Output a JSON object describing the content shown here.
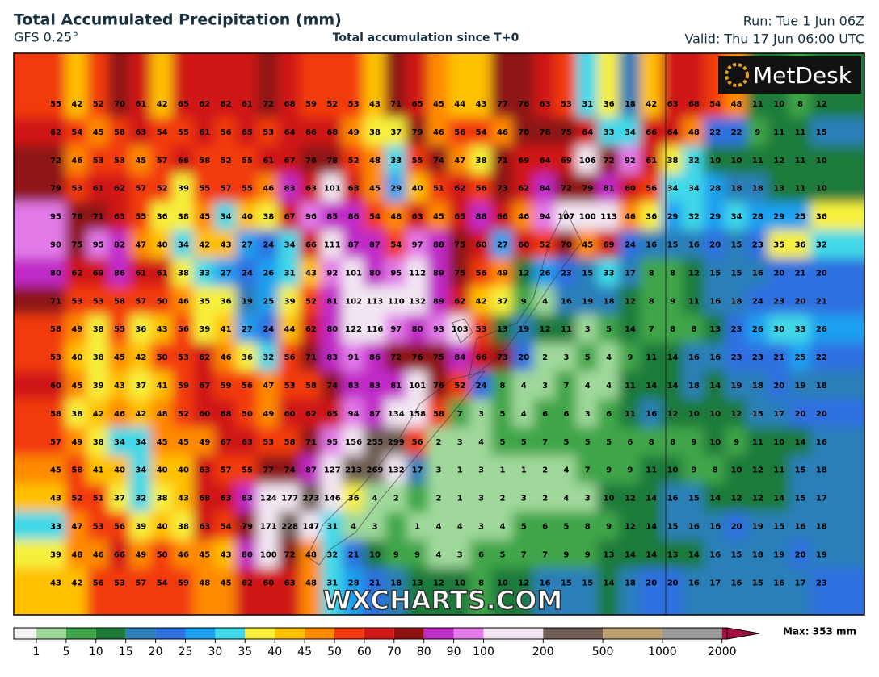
{
  "header": {
    "title": "Total Accumulated Precipitation (mm)",
    "model": "GFS 0.25°",
    "subtitle": "Total accumulation since T+0",
    "run": "Run: Tue 1 Jun 06Z",
    "valid": "Valid: Thu 17 Jun 06:00 UTC"
  },
  "logo": "MetDesk",
  "watermark": "WXCHARTS.COM",
  "max_label": "Max: 353 mm",
  "map": {
    "grid": [
      [
        55,
        42,
        52,
        70,
        61,
        42,
        65,
        62,
        62,
        61,
        72,
        68,
        59,
        52,
        53,
        43,
        71,
        65,
        45,
        44,
        43,
        77,
        76,
        63,
        53,
        31,
        36,
        18,
        42,
        63,
        68,
        54,
        48,
        11,
        10,
        8,
        12
      ],
      [
        62,
        54,
        45,
        58,
        63,
        54,
        55,
        61,
        56,
        65,
        53,
        64,
        66,
        68,
        49,
        38,
        37,
        79,
        46,
        56,
        54,
        46,
        70,
        78,
        75,
        64,
        33,
        34,
        66,
        64,
        48,
        22,
        22,
        9,
        11,
        11,
        15
      ],
      [
        72,
        46,
        53,
        53,
        45,
        57,
        66,
        58,
        52,
        55,
        61,
        67,
        76,
        78,
        52,
        48,
        33,
        55,
        74,
        47,
        38,
        71,
        69,
        64,
        69,
        106,
        72,
        92,
        61,
        38,
        32,
        10,
        10,
        11,
        12,
        11,
        10
      ],
      [
        79,
        53,
        61,
        62,
        57,
        52,
        39,
        55,
        57,
        55,
        46,
        83,
        63,
        101,
        68,
        45,
        29,
        40,
        51,
        62,
        56,
        73,
        62,
        84,
        72,
        79,
        81,
        60,
        56,
        34,
        34,
        28,
        18,
        18,
        13,
        11,
        10
      ],
      [
        95,
        76,
        71,
        63,
        55,
        36,
        38,
        45,
        34,
        40,
        38,
        67,
        96,
        85,
        86,
        54,
        48,
        63,
        45,
        65,
        88,
        66,
        46,
        94,
        107,
        100,
        113,
        46,
        36,
        29,
        32,
        29,
        34,
        28,
        29,
        25,
        36
      ],
      [
        90,
        75,
        95,
        82,
        47,
        40,
        34,
        42,
        43,
        27,
        24,
        34,
        66,
        111,
        87,
        87,
        54,
        97,
        88,
        75,
        60,
        27,
        60,
        52,
        70,
        45,
        69,
        24,
        16,
        15,
        16,
        20,
        15,
        23,
        35,
        36,
        32
      ],
      [
        80,
        62,
        69,
        86,
        61,
        61,
        38,
        33,
        27,
        24,
        26,
        31,
        43,
        92,
        101,
        80,
        95,
        112,
        89,
        75,
        56,
        49,
        12,
        26,
        23,
        15,
        33,
        17,
        8,
        8,
        12,
        15,
        15,
        16,
        20,
        21,
        20
      ],
      [
        71,
        53,
        53,
        58,
        57,
        50,
        46,
        35,
        36,
        19,
        25,
        39,
        52,
        81,
        102,
        113,
        110,
        132,
        89,
        62,
        42,
        37,
        9,
        4,
        16,
        19,
        18,
        12,
        8,
        9,
        11,
        16,
        18,
        24,
        23,
        20,
        21
      ],
      [
        58,
        49,
        38,
        55,
        36,
        43,
        56,
        39,
        41,
        27,
        24,
        44,
        62,
        80,
        122,
        116,
        97,
        80,
        93,
        103,
        53,
        13,
        19,
        12,
        11,
        3,
        5,
        14,
        7,
        8,
        8,
        13,
        23,
        26,
        30,
        33,
        26
      ],
      [
        53,
        40,
        38,
        45,
        42,
        50,
        53,
        62,
        46,
        36,
        32,
        56,
        71,
        83,
        91,
        86,
        72,
        76,
        75,
        84,
        66,
        73,
        20,
        2,
        3,
        5,
        4,
        9,
        11,
        14,
        16,
        16,
        23,
        23,
        21,
        25,
        22
      ],
      [
        60,
        45,
        39,
        43,
        37,
        41,
        59,
        67,
        59,
        56,
        47,
        53,
        58,
        74,
        83,
        83,
        81,
        101,
        76,
        52,
        24,
        8,
        4,
        3,
        7,
        4,
        4,
        11,
        14,
        14,
        18,
        14,
        19,
        18,
        20,
        19,
        18
      ],
      [
        58,
        38,
        42,
        46,
        42,
        48,
        52,
        60,
        68,
        50,
        49,
        60,
        62,
        65,
        94,
        87,
        134,
        158,
        58,
        7,
        3,
        5,
        4,
        6,
        6,
        3,
        6,
        11,
        16,
        12,
        10,
        10,
        12,
        15,
        17,
        20,
        20
      ],
      [
        57,
        49,
        38,
        34,
        34,
        45,
        45,
        49,
        67,
        63,
        53,
        58,
        71,
        95,
        156,
        255,
        299,
        56,
        2,
        3,
        4,
        5,
        5,
        7,
        5,
        5,
        5,
        6,
        8,
        8,
        9,
        10,
        9,
        11,
        10,
        14,
        16
      ],
      [
        45,
        58,
        41,
        40,
        34,
        40,
        40,
        63,
        57,
        55,
        77,
        74,
        87,
        127,
        213,
        269,
        132,
        17,
        3,
        1,
        3,
        1,
        1,
        2,
        4,
        7,
        9,
        9,
        11,
        10,
        9,
        8,
        10,
        12,
        11,
        15,
        18
      ],
      [
        43,
        52,
        51,
        37,
        32,
        38,
        43,
        68,
        63,
        83,
        124,
        177,
        273,
        146,
        36,
        4,
        2,
        null,
        2,
        1,
        3,
        2,
        3,
        2,
        4,
        3,
        10,
        12,
        14,
        16,
        15,
        14,
        12,
        12,
        14,
        15,
        17
      ],
      [
        33,
        47,
        53,
        56,
        39,
        40,
        38,
        63,
        54,
        79,
        171,
        228,
        147,
        31,
        4,
        3,
        null,
        1,
        4,
        4,
        3,
        4,
        5,
        6,
        5,
        8,
        9,
        12,
        14,
        15,
        16,
        16,
        20,
        19,
        15,
        16,
        18
      ],
      [
        39,
        48,
        46,
        66,
        49,
        50,
        46,
        45,
        43,
        80,
        100,
        72,
        48,
        32,
        21,
        10,
        9,
        9,
        4,
        3,
        6,
        5,
        7,
        7,
        9,
        9,
        13,
        14,
        14,
        13,
        14,
        16,
        15,
        18,
        19,
        20,
        19
      ],
      [
        43,
        42,
        56,
        53,
        57,
        54,
        59,
        48,
        45,
        62,
        60,
        63,
        48,
        31,
        28,
        21,
        18,
        13,
        12,
        10,
        8,
        10,
        12,
        16,
        15,
        15,
        14,
        18,
        20,
        20,
        16,
        17,
        16,
        15,
        16,
        17,
        23
      ]
    ]
  },
  "colorbar": {
    "ticks": [
      1,
      5,
      10,
      15,
      20,
      25,
      30,
      35,
      40,
      45,
      50,
      60,
      70,
      80,
      90,
      100,
      200,
      500,
      1000,
      2000
    ],
    "colors": [
      "#f2f2f2",
      "#9fd89a",
      "#3fa54a",
      "#1f7a3a",
      "#2c7fb8",
      "#2f6fe0",
      "#1ea0f0",
      "#3fd8e8",
      "#f6f03a",
      "#ffc000",
      "#ff8a00",
      "#f23a10",
      "#d01818",
      "#8e1212",
      "#c02cc8",
      "#e27ae8",
      "#f2e6f2",
      "#6e5e54",
      "#b8a070",
      "#9a9a9a",
      "#a01040"
    ]
  }
}
